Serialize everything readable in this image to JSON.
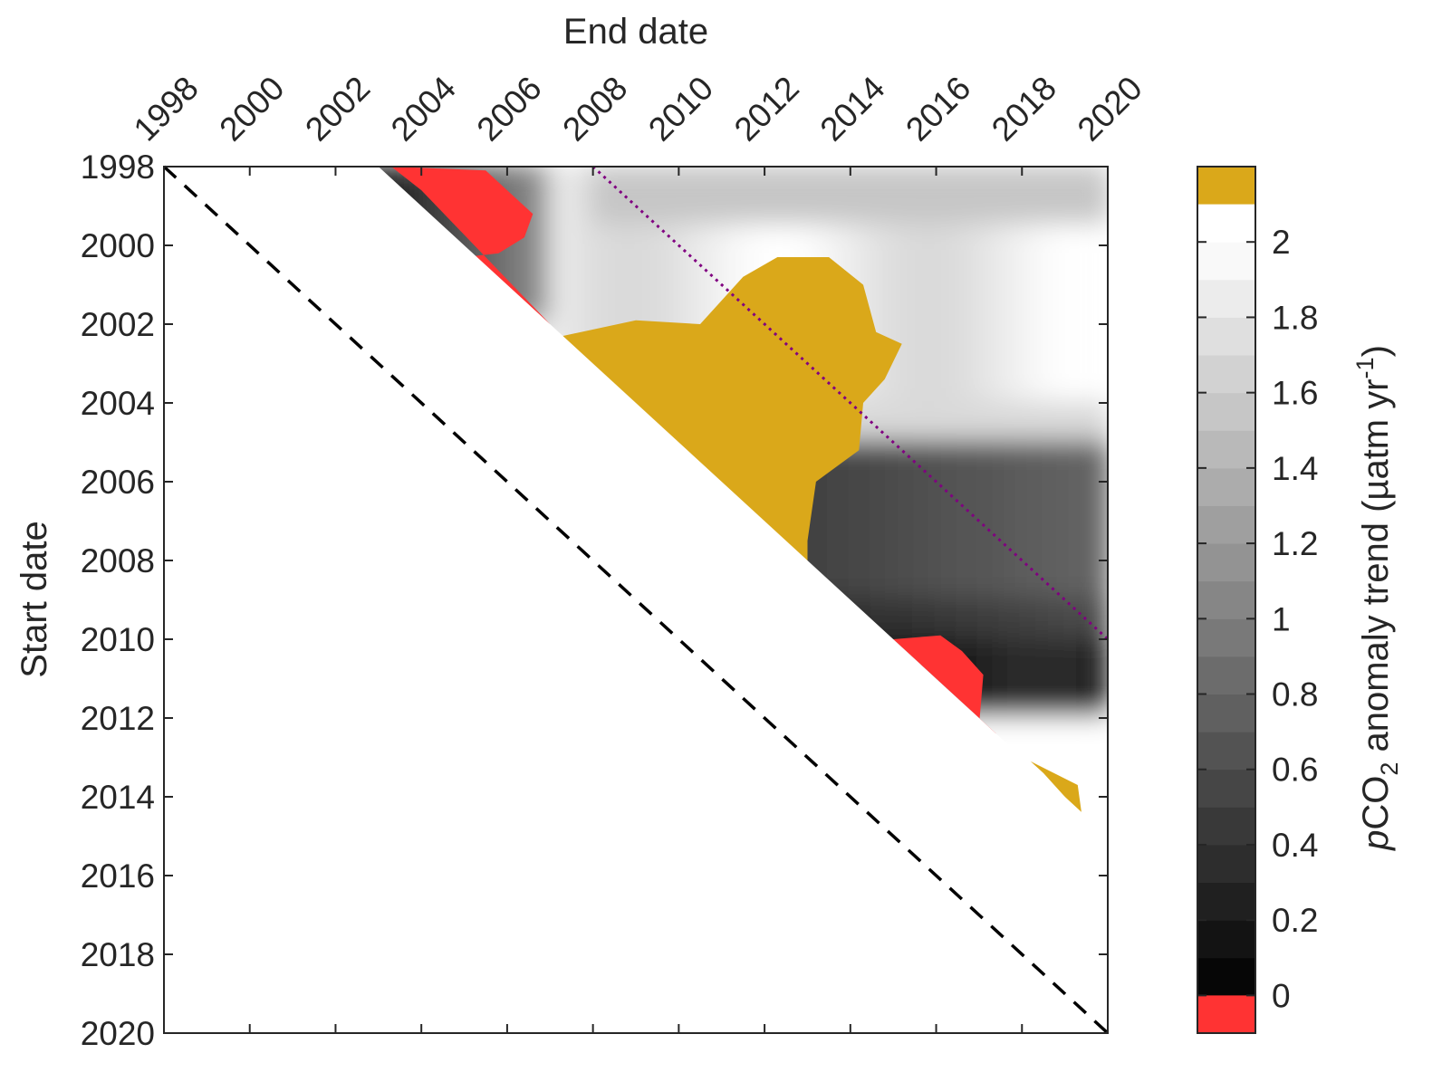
{
  "chart_data": {
    "type": "heatmap",
    "xlabel": "End date",
    "ylabel": "Start date",
    "colorbar_label": {
      "italic": "p",
      "main": "CO",
      "sub": "2",
      "rest": " anomaly trend (µatm yr",
      "sup": "-1",
      "close": ")"
    },
    "x_ticks": [
      1998,
      2000,
      2002,
      2004,
      2006,
      2008,
      2010,
      2012,
      2014,
      2016,
      2018,
      2020
    ],
    "x_tick_labels": [
      "1998",
      "2000",
      "2002",
      "2004",
      "2006",
      "2008",
      "2010",
      "2012",
      "2014",
      "2016",
      "2018",
      "2020"
    ],
    "y_ticks": [
      1998,
      2000,
      2002,
      2004,
      2006,
      2008,
      2010,
      2012,
      2014,
      2016,
      2018,
      2020
    ],
    "y_tick_labels": [
      "1998",
      "2000",
      "2002",
      "2004",
      "2006",
      "2008",
      "2010",
      "2012",
      "2014",
      "2016",
      "2018",
      "2020"
    ],
    "xlim": [
      1998,
      2020
    ],
    "ylim": [
      1998,
      2020
    ],
    "y_reversed": true,
    "x_axis_location": "top",
    "colorbar": {
      "ticks": [
        0,
        0.2,
        0.4,
        0.6,
        0.8,
        1,
        1.2,
        1.4,
        1.6,
        1.8,
        2
      ],
      "tick_labels": [
        "0",
        "0.2",
        "0.4",
        "0.6",
        "0.8",
        "1",
        "1.2",
        "1.4",
        "1.6",
        "1.8",
        "2"
      ],
      "range": [
        -0.1,
        2.2
      ],
      "below_range_color": "#ff3333",
      "above_range_color": "#daa81a",
      "low_color": "#000000",
      "high_color": "#ffffff"
    },
    "min_period_years": 5,
    "note_lines": [
      {
        "style": "dashed",
        "color": "#000000",
        "from": [
          1998,
          1998
        ],
        "to": [
          2020,
          2020
        ]
      },
      {
        "style": "dotted",
        "color": "#800080",
        "from": [
          2008,
          1998
        ],
        "to": [
          2020,
          2010
        ]
      }
    ],
    "regions_below_0": [
      {
        "start": [
          1998.6,
          2001.6
        ],
        "end": [
          2003.3,
          2007.2
        ]
      },
      {
        "start": [
          2010.0,
          2012.2
        ],
        "end": [
          2015.0,
          2017.7
        ]
      }
    ],
    "regions_above_2_2": [
      {
        "start": [
          2000.3,
          2009.2
        ],
        "end": [
          2007.3,
          2014.3
        ]
      },
      {
        "start": [
          2013.2,
          2014.4
        ],
        "end": [
          2018.2,
          2019.4
        ]
      }
    ]
  }
}
